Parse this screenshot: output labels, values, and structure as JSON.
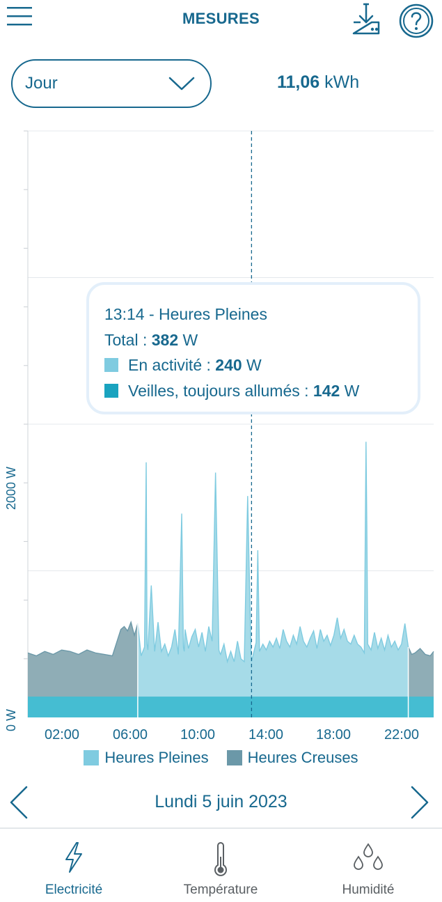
{
  "header": {
    "title": "MESURES",
    "menu_icon": "hamburger-menu-icon",
    "download_icon": "download-icon",
    "help_icon": "help-question-icon"
  },
  "period_selector": {
    "value": "Jour"
  },
  "total": {
    "value": "11,06",
    "unit": "kWh"
  },
  "tooltip": {
    "title": "13:14 - Heures Pleines",
    "total_label": "Total : ",
    "total_value": "382",
    "total_unit": " W",
    "active_label": "En activité : ",
    "active_value": "240",
    "active_unit": " W",
    "standby_label": "Veilles, toujours allumés : ",
    "standby_value": "142",
    "standby_unit": " W"
  },
  "chart_data": {
    "type": "area",
    "x_unit": "hours",
    "xlim": [
      0.0,
      24.0
    ],
    "ylim": [
      0,
      4000
    ],
    "y_tick_labels": [
      "0 W",
      "2000 W"
    ],
    "x_tick_labels": [
      "02:00",
      "06:00",
      "10:00",
      "14:00",
      "18:00",
      "22:00"
    ],
    "cursor_time": 13.23,
    "standby_level": 142,
    "off_peak_ranges": [
      [
        0.0,
        6.5
      ],
      [
        22.5,
        24.0
      ]
    ],
    "series": [
      {
        "name": "Heures Pleines",
        "x": [
          0.0,
          0.5,
          1.0,
          1.5,
          2.0,
          2.5,
          3.0,
          3.5,
          4.0,
          4.5,
          5.0,
          5.5,
          5.7,
          5.9,
          6.1,
          6.3,
          6.5,
          6.7,
          6.9,
          7.0,
          7.05,
          7.1,
          7.3,
          7.5,
          7.7,
          7.9,
          8.1,
          8.3,
          8.5,
          8.7,
          8.9,
          9.1,
          9.2,
          9.25,
          9.3,
          9.5,
          9.7,
          9.9,
          10.1,
          10.3,
          10.5,
          10.7,
          10.9,
          11.1,
          11.3,
          11.35,
          11.4,
          11.6,
          11.8,
          12.0,
          12.2,
          12.4,
          12.6,
          12.8,
          13.0,
          13.2,
          13.23,
          13.5,
          13.6,
          13.7,
          13.9,
          14.1,
          14.3,
          14.5,
          14.7,
          14.9,
          15.1,
          15.3,
          15.5,
          15.7,
          15.9,
          16.1,
          16.3,
          16.5,
          16.7,
          16.9,
          17.1,
          17.3,
          17.5,
          17.7,
          17.9,
          18.1,
          18.3,
          18.5,
          18.7,
          18.9,
          19.1,
          19.3,
          19.5,
          19.7,
          19.9,
          20.0,
          20.05,
          20.1,
          20.3,
          20.5,
          20.7,
          20.9,
          21.1,
          21.3,
          21.5,
          21.7,
          21.9,
          22.1,
          22.3,
          22.5,
          22.7,
          22.9,
          23.2,
          23.5,
          23.8,
          24.0
        ],
        "values": [
          440,
          420,
          450,
          430,
          460,
          450,
          430,
          460,
          440,
          430,
          420,
          600,
          620,
          590,
          650,
          560,
          640,
          420,
          480,
          1740,
          500,
          460,
          900,
          450,
          650,
          450,
          500,
          420,
          480,
          600,
          430,
          1390,
          480,
          450,
          600,
          470,
          550,
          600,
          480,
          580,
          450,
          620,
          520,
          1670,
          460,
          440,
          430,
          500,
          380,
          450,
          380,
          520,
          400,
          380,
          1510,
          430,
          382,
          510,
          1140,
          450,
          500,
          460,
          520,
          480,
          540,
          470,
          600,
          520,
          480,
          560,
          500,
          620,
          520,
          480,
          540,
          590,
          470,
          600,
          520,
          560,
          490,
          560,
          680,
          540,
          600,
          520,
          500,
          560,
          500,
          480,
          440,
          1880,
          1300,
          500,
          460,
          580,
          470,
          540,
          460,
          560,
          480,
          520,
          460,
          500,
          640,
          480,
          430,
          440,
          470,
          430,
          420,
          450
        ]
      },
      {
        "name": "Heures Creuses"
      }
    ]
  },
  "legend": {
    "peak_label": "Heures Pleines",
    "peak_color": "#7fcbe0",
    "offpeak_label": "Heures Creuses",
    "offpeak_color": "#6b98a8"
  },
  "date_nav": {
    "date": "Lundi 5 juin 2023",
    "prev_icon": "chevron-left-icon",
    "next_icon": "chevron-right-icon"
  },
  "bottom_nav": {
    "tabs": [
      {
        "label": "Electricité",
        "icon": "lightning-bolt-icon",
        "active": true
      },
      {
        "label": "Température",
        "icon": "thermometer-icon",
        "active": false
      },
      {
        "label": "Humidité",
        "icon": "water-drops-icon",
        "active": false
      }
    ]
  },
  "colors": {
    "primary": "#17688e",
    "standby": "#45bdd2",
    "peak_fill": "#a6dbe8",
    "peak_line": "#7fcbe0",
    "offpeak_fill": "#8fadb6",
    "offpeak_line": "#6b98a8"
  }
}
